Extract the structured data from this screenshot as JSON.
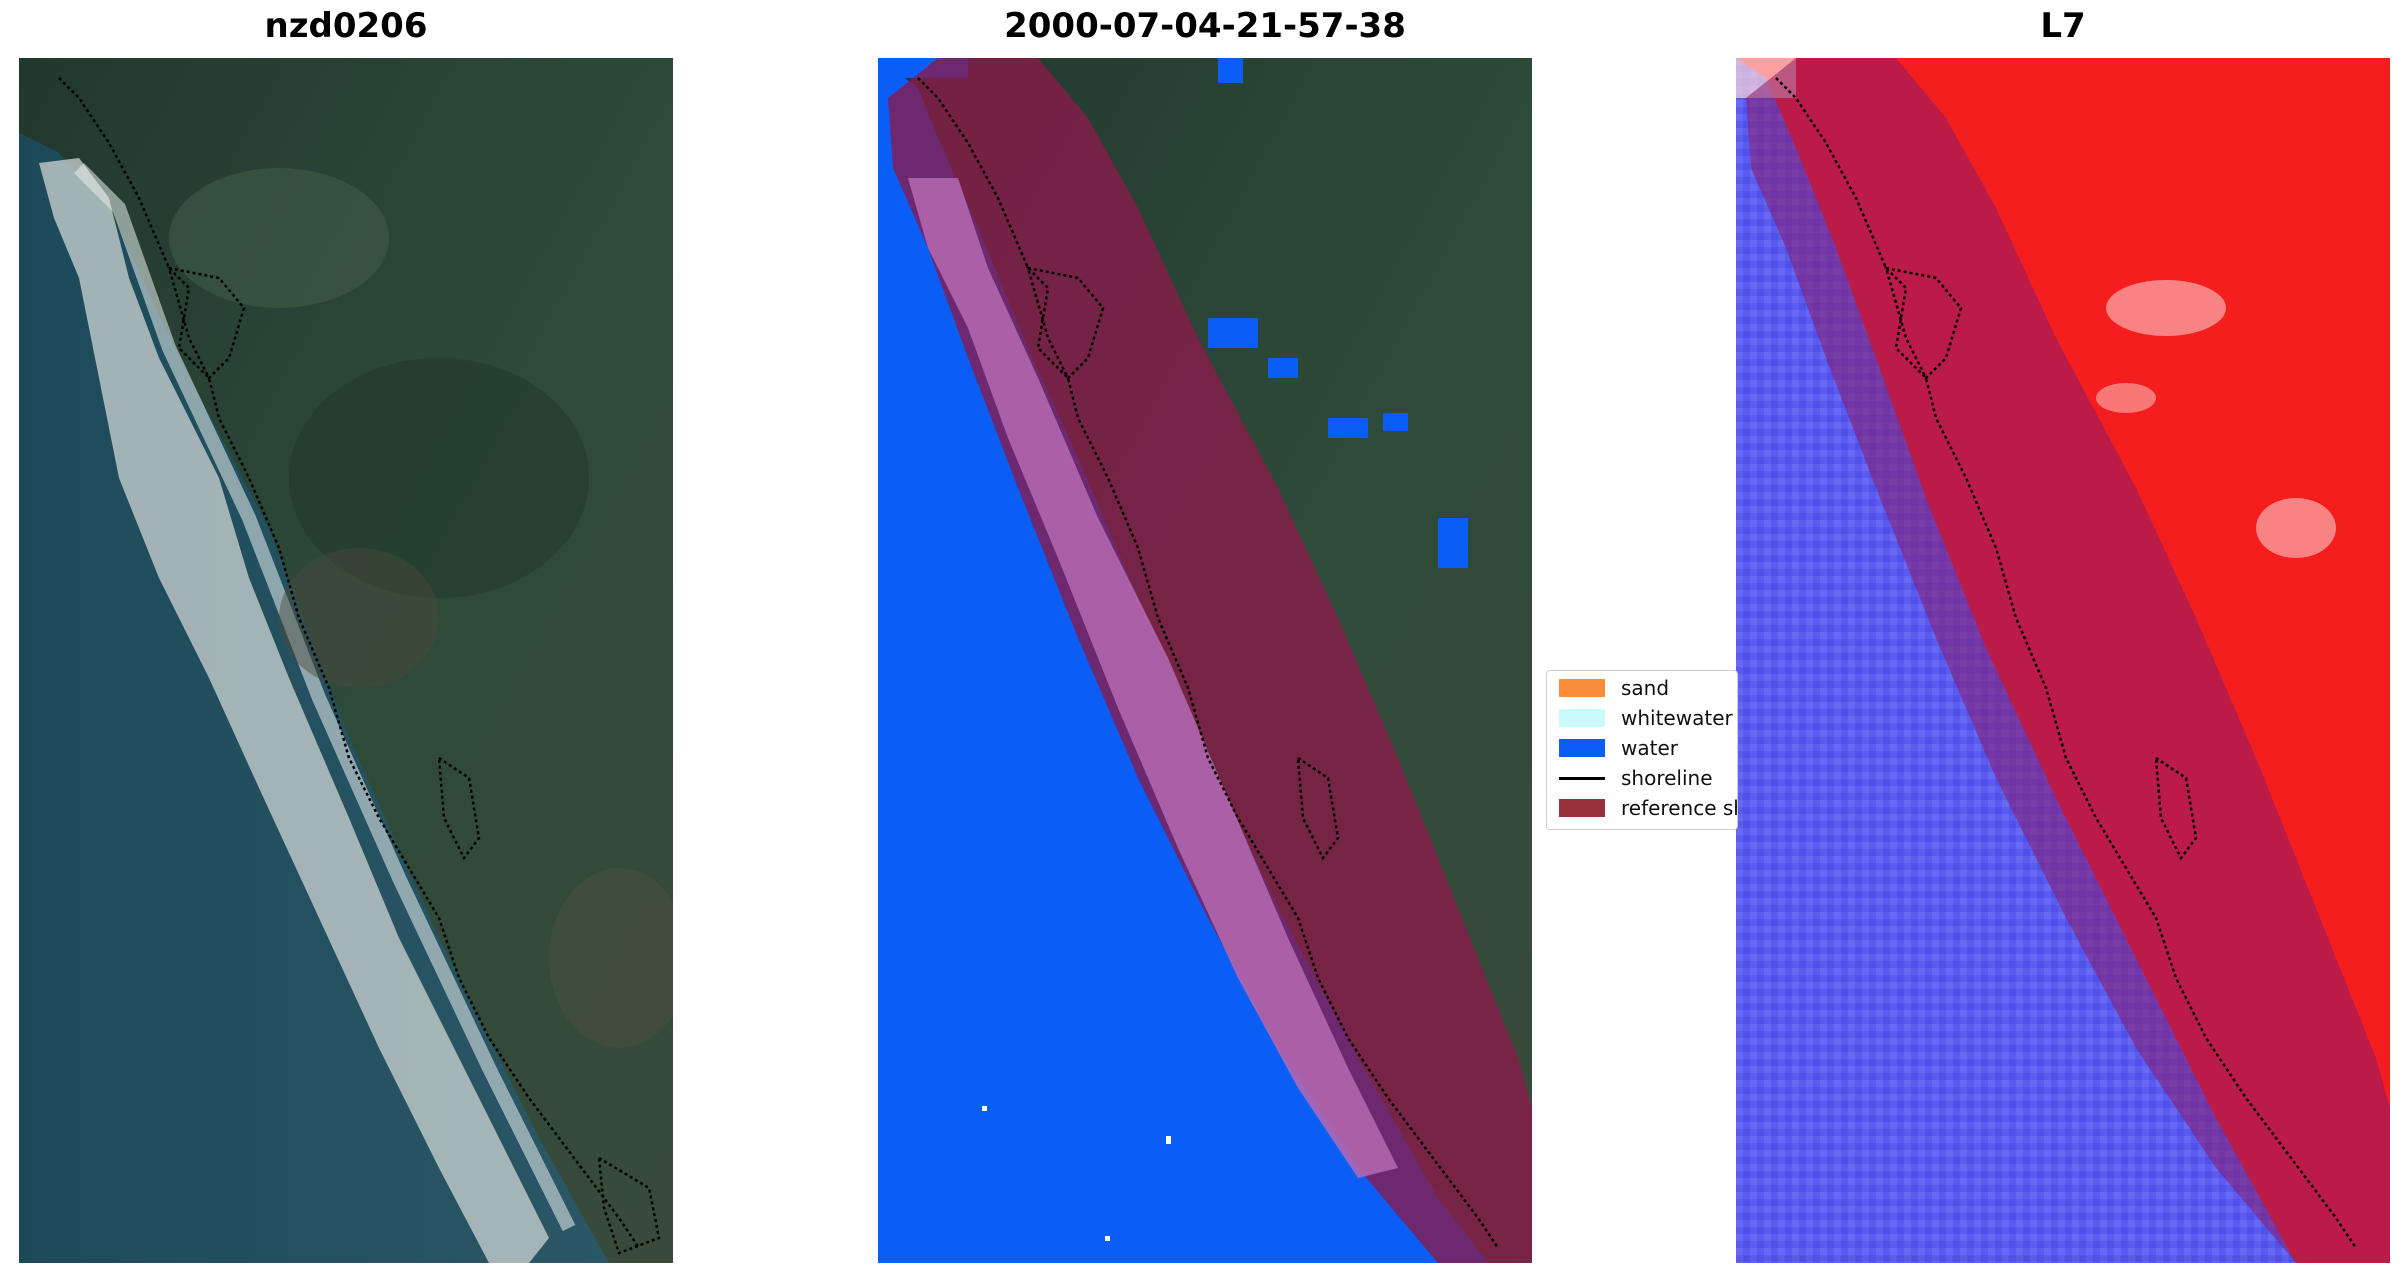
{
  "panels": [
    {
      "title": "nzd0206"
    },
    {
      "title": "2000-07-04-21-57-38"
    },
    {
      "title": "L7"
    }
  ],
  "legend": {
    "items": [
      {
        "label": "sand",
        "color": "#fb8c3a",
        "kind": "patch"
      },
      {
        "label": "whitewater",
        "color": "#c8fafa",
        "kind": "patch"
      },
      {
        "label": "water",
        "color": "#0a5ef5",
        "kind": "patch"
      },
      {
        "label": "shoreline",
        "color": "#000000",
        "kind": "line"
      },
      {
        "label": "reference shoreline buffer",
        "color": "#96323a",
        "kind": "patch"
      }
    ]
  },
  "colors": {
    "water_class": "#0a5ef5",
    "buffer": "#8b1a4a",
    "ocean_rgb": "#25505f",
    "land_rgb": "#2c4a3a",
    "water_index_low": "#5a5cf0",
    "water_index_high": "#f41e1e"
  }
}
